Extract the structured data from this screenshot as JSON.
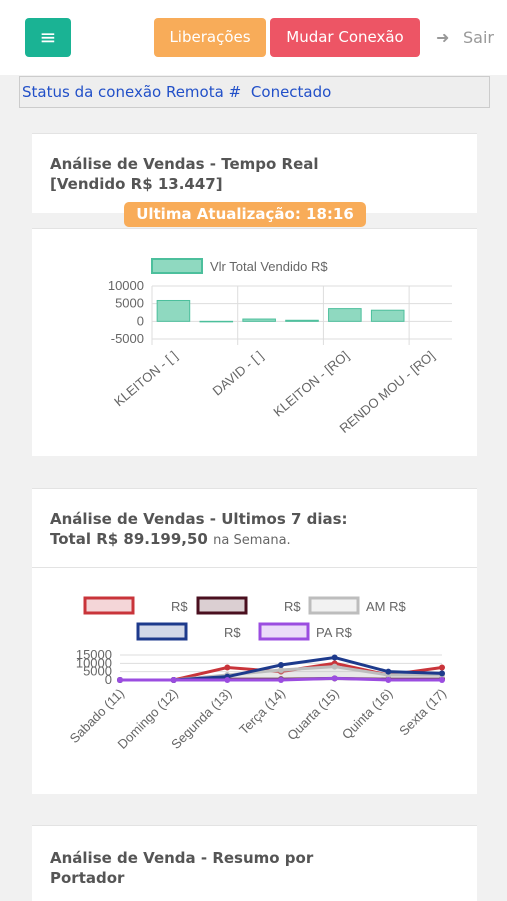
{
  "header": {
    "menu_icon": "≡",
    "buttons": [
      "Liberações",
      "Mudar Conexão"
    ],
    "logout": "Sair"
  },
  "status": {
    "label": "Status da conexão Remota #",
    "value": "Conectado"
  },
  "cards": [
    {
      "title": "Análise de Vendas - Tempo Real",
      "subtitle": "[Vendido R$ 13.447]",
      "badge": "Ultima Atualização: 18:16",
      "chart_data": {
        "type": "bar",
        "categories": [
          "KLEITON - [   ]",
          null,
          "DAVID - [   ]",
          null,
          "KLEITON - [RO]",
          null,
          "RENDO MOU - [RO]"
        ],
        "series": [
          {
            "name": "Vlr Total Vendido R$",
            "color": "#8fd9c0",
            "border": "#4cbf9c",
            "values": [
              5900,
              -150,
              650,
              300,
              3600,
              3150,
              0
            ]
          }
        ],
        "ylim": [
          -5000,
          10000
        ],
        "yticks": [
          10000,
          5000,
          0,
          -5000
        ],
        "grid": true
      }
    },
    {
      "title": "Análise de Vendas - Ultimos 7 dias:",
      "subtitle": "Total R$ 89.199,50",
      "subtitle_note": "na Semana.",
      "chart_data": {
        "type": "line",
        "categories": [
          "Sabado (11)",
          "Domingo (12)",
          "Segunda (13)",
          "Terça (14)",
          "Quarta (15)",
          "Quinta (16)",
          "Sexta (17)"
        ],
        "series": [
          {
            "name": "R$",
            "color": "#c9343a",
            "values": [
              0,
              0,
              7500,
              5000,
              10000,
              3000,
              7500
            ]
          },
          {
            "name": "R$",
            "color": "#4a0f1f",
            "values": [
              0,
              0,
              500,
              500,
              1000,
              500,
              500
            ]
          },
          {
            "name": "AM R$",
            "color": "#bdbdbd",
            "values": [
              0,
              0,
              3000,
              6000,
              8000,
              3000,
              3000
            ]
          },
          {
            "name": "R$",
            "color": "#1d3a8c",
            "values": [
              0,
              0,
              2000,
              9000,
              13500,
              5000,
              4000
            ]
          },
          {
            "name": "PA R$",
            "color": "#9b4de0",
            "values": [
              0,
              0,
              0,
              0,
              1000,
              0,
              0
            ]
          }
        ],
        "ylim": [
          0,
          15000
        ],
        "yticks": [
          15000,
          10000,
          5000,
          0
        ],
        "grid": true
      }
    },
    {
      "title": "Análise de Venda - Resumo por Portador"
    }
  ]
}
